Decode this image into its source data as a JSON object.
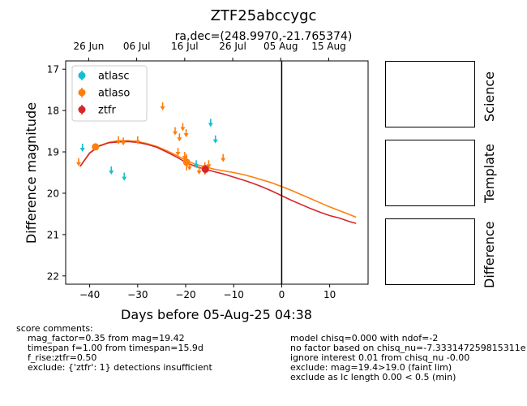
{
  "title": "ZTF25abccygc",
  "subtitle": "ra,dec=(248.9970,-21.765374)",
  "xlabel": "Days before 05-Aug-25 04:38",
  "ylabel": "Difference magnitude",
  "panels": {
    "science": "Science",
    "template": "Template",
    "difference": "Difference"
  },
  "comments_left": {
    "heading": "score comments:",
    "lines": [
      "mag_factor=0.35 from mag=19.42",
      "timespan f=1.00 from timespan=15.9d",
      "f_rise:ztfr=0.50",
      "exclude: {'ztfr': 1} detections insufficient"
    ]
  },
  "comments_right": {
    "lines": [
      "model chisq=0.000 with ndof=-2",
      "no factor based on chisq_nu=-7.333147259815311e",
      "ignore interest 0.01 from chisq_nu -0.00",
      "exclude: mag=19.4>19.0 (faint lim)",
      "exclude as lc length 0.00 < 0.5 (min)"
    ]
  },
  "chart_data": {
    "type": "scatter",
    "title": "ZTF25abccygc",
    "subtitle": "ra,dec=(248.9970,-21.765374)",
    "xlabel": "Days before 05-Aug-25 04:38",
    "ylabel": "Difference magnitude",
    "xlim": [
      -45,
      18
    ],
    "ylim": [
      22.2,
      16.8
    ],
    "y_inverted": true,
    "x_ticks": [
      -40,
      -30,
      -20,
      -10,
      0,
      10
    ],
    "y_ticks": [
      17,
      18,
      19,
      20,
      21,
      22
    ],
    "top_axis": {
      "ticks": [
        {
          "x": -40.2,
          "label": "26 Jun"
        },
        {
          "x": -30.2,
          "label": "06 Jul"
        },
        {
          "x": -20.2,
          "label": "16 Jul"
        },
        {
          "x": -10.2,
          "label": "26 Jul"
        },
        {
          "x": -0.2,
          "label": "05 Aug"
        },
        {
          "x": 9.8,
          "label": "15 Aug"
        }
      ]
    },
    "vline_x": 0,
    "legend": {
      "placement": "upper-left",
      "entries": [
        "atlasc",
        "atlaso",
        "ztfr"
      ]
    },
    "colors": {
      "atlasc": "#17becf",
      "atlaso": "#ff7f0e",
      "ztfr": "#d62728",
      "vline": "#000000"
    },
    "series": [
      {
        "name": "atlasc",
        "detections": [],
        "upper_limits": [
          {
            "x": -41.5,
            "y": 18.9
          },
          {
            "x": -35.5,
            "y": 19.45
          },
          {
            "x": -32.8,
            "y": 19.6
          },
          {
            "x": -17.8,
            "y": 19.3
          },
          {
            "x": -14.8,
            "y": 18.3
          },
          {
            "x": -13.8,
            "y": 18.7
          }
        ]
      },
      {
        "name": "atlaso",
        "detections": [
          {
            "x": -38.8,
            "y": 18.88,
            "err": 0.07
          },
          {
            "x": -19.8,
            "y": 19.25,
            "err": 0.2
          },
          {
            "x": -16.0,
            "y": 19.4,
            "err": 0.15
          }
        ],
        "upper_limits": [
          {
            "x": -42.3,
            "y": 19.25
          },
          {
            "x": -34.0,
            "y": 18.72
          },
          {
            "x": -33.0,
            "y": 18.75
          },
          {
            "x": -30.0,
            "y": 18.72
          },
          {
            "x": -24.8,
            "y": 17.9
          },
          {
            "x": -22.2,
            "y": 18.5
          },
          {
            "x": -21.3,
            "y": 18.65
          },
          {
            "x": -20.6,
            "y": 18.4
          },
          {
            "x": -19.9,
            "y": 18.55
          },
          {
            "x": -21.6,
            "y": 19.0
          },
          {
            "x": -20.2,
            "y": 19.1
          },
          {
            "x": -19.2,
            "y": 19.35
          },
          {
            "x": -17.2,
            "y": 19.45
          },
          {
            "x": -15.2,
            "y": 19.3
          },
          {
            "x": -12.2,
            "y": 19.15
          }
        ]
      },
      {
        "name": "ztfr",
        "detections": [
          {
            "x": -15.9,
            "y": 19.42,
            "err": 0.1
          }
        ],
        "upper_limits": []
      }
    ],
    "model_curves": [
      {
        "name": "atlaso",
        "points": [
          [
            -42,
            19.35
          ],
          [
            -40,
            19.02
          ],
          [
            -38,
            18.85
          ],
          [
            -36,
            18.77
          ],
          [
            -34,
            18.73
          ],
          [
            -32,
            18.73
          ],
          [
            -30,
            18.75
          ],
          [
            -28,
            18.8
          ],
          [
            -26,
            18.87
          ],
          [
            -24,
            18.97
          ],
          [
            -22,
            19.08
          ],
          [
            -20,
            19.2
          ],
          [
            -18,
            19.3
          ],
          [
            -16,
            19.36
          ],
          [
            -14,
            19.42
          ],
          [
            -12,
            19.46
          ],
          [
            -10,
            19.5
          ],
          [
            -8,
            19.55
          ],
          [
            -6,
            19.61
          ],
          [
            -4,
            19.68
          ],
          [
            -2,
            19.75
          ],
          [
            0,
            19.84
          ],
          [
            2,
            19.93
          ],
          [
            4,
            20.03
          ],
          [
            6,
            20.13
          ],
          [
            8,
            20.23
          ],
          [
            10,
            20.33
          ],
          [
            12,
            20.42
          ],
          [
            14,
            20.51
          ],
          [
            15.5,
            20.58
          ]
        ]
      },
      {
        "name": "ztfr",
        "points": [
          [
            -42,
            19.35
          ],
          [
            -40,
            19.03
          ],
          [
            -38,
            18.86
          ],
          [
            -36,
            18.78
          ],
          [
            -34,
            18.76
          ],
          [
            -32,
            18.75
          ],
          [
            -30,
            18.77
          ],
          [
            -28,
            18.82
          ],
          [
            -26,
            18.89
          ],
          [
            -24,
            19.0
          ],
          [
            -22,
            19.12
          ],
          [
            -20,
            19.25
          ],
          [
            -18,
            19.35
          ],
          [
            -16,
            19.42
          ],
          [
            -14,
            19.48
          ],
          [
            -12,
            19.54
          ],
          [
            -10,
            19.61
          ],
          [
            -8,
            19.68
          ],
          [
            -6,
            19.76
          ],
          [
            -4,
            19.85
          ],
          [
            -2,
            19.95
          ],
          [
            0,
            20.06
          ],
          [
            2,
            20.17
          ],
          [
            4,
            20.27
          ],
          [
            6,
            20.37
          ],
          [
            8,
            20.46
          ],
          [
            10,
            20.54
          ],
          [
            12,
            20.6
          ],
          [
            14,
            20.68
          ],
          [
            15.5,
            20.73
          ]
        ]
      }
    ]
  }
}
